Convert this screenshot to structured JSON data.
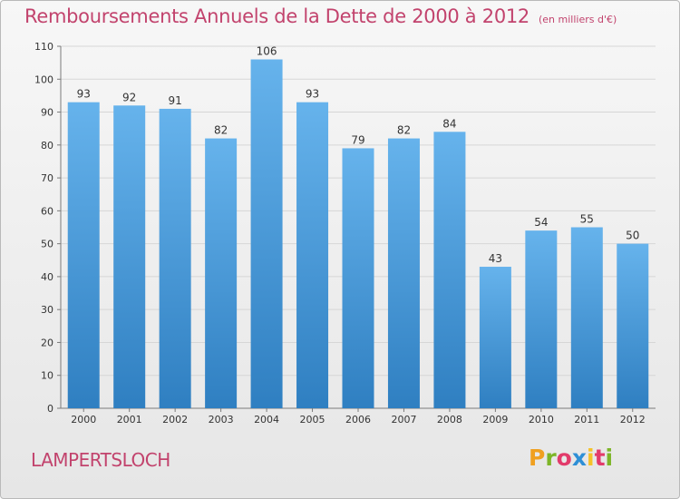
{
  "title": "Remboursements Annuels de la Dette de 2000 à 2012",
  "title_unit": "(en milliers d'€)",
  "town": "LAMPERTSLOCH",
  "brand": {
    "letters": [
      "P",
      "r",
      "o",
      "x",
      "i",
      "t",
      "i"
    ],
    "colors": [
      "#f0a020",
      "#7db528",
      "#e23b6b",
      "#2e8fd6",
      "#f5c228",
      "#e23b6b",
      "#7db528"
    ]
  },
  "colors": {
    "title": "#c2436d",
    "bar_top": "#66b3ec",
    "bar_bottom": "#2f7fc1",
    "grid": "#d6d6d6"
  },
  "chart_data": {
    "type": "bar",
    "categories": [
      "2000",
      "2001",
      "2002",
      "2003",
      "2004",
      "2005",
      "2006",
      "2007",
      "2008",
      "2009",
      "2010",
      "2011",
      "2012"
    ],
    "values": [
      93,
      92,
      91,
      82,
      106,
      93,
      79,
      82,
      84,
      43,
      54,
      55,
      50
    ],
    "ylim": [
      0,
      110
    ],
    "yticks": [
      0,
      10,
      20,
      30,
      40,
      50,
      60,
      70,
      80,
      90,
      100,
      110
    ],
    "grid": true,
    "data_labels": true
  }
}
